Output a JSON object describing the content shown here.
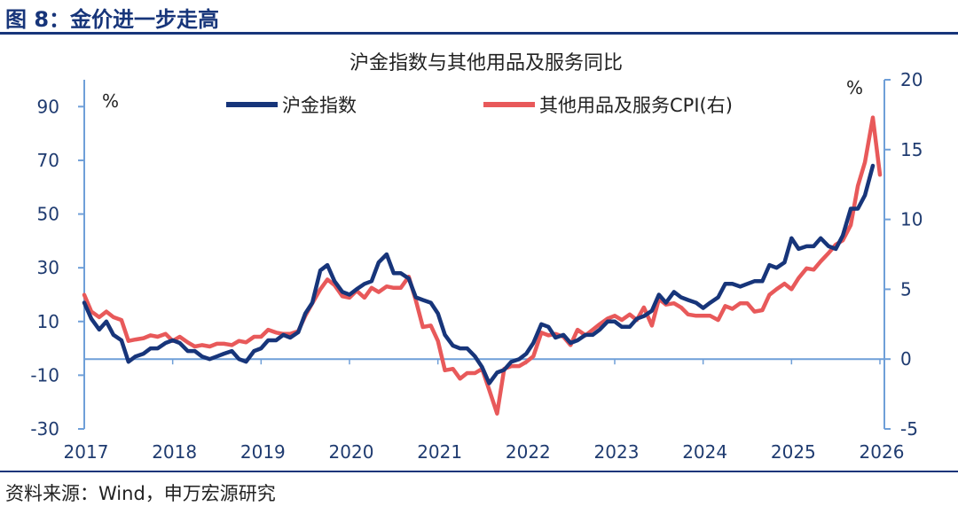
{
  "figure": {
    "title": "图 8：金价进一步走高",
    "source": "资料来源：Wind，申万宏源研究"
  },
  "chart_data": {
    "type": "line",
    "title": "沪金指数与其他用品及服务同比",
    "y_left": {
      "label": "%",
      "lim": [
        -30,
        100
      ],
      "ticks": [
        -30,
        -10,
        10,
        30,
        50,
        70,
        90
      ]
    },
    "y_right": {
      "label": "%",
      "lim": [
        -5,
        20
      ],
      "ticks": [
        -5,
        0,
        5,
        10,
        15,
        20
      ]
    },
    "x_ticks": [
      "2017",
      "2018",
      "2019",
      "2020",
      "2021",
      "2022",
      "2023",
      "2024",
      "2025",
      "2026"
    ],
    "x_range": [
      2017,
      2026
    ],
    "series": [
      {
        "name": "沪金指数",
        "axis": "left",
        "color": "#17357a",
        "points": [
          [
            2017.0,
            17
          ],
          [
            2017.08,
            11
          ],
          [
            2017.17,
            7
          ],
          [
            2017.25,
            10
          ],
          [
            2017.33,
            5
          ],
          [
            2017.42,
            3
          ],
          [
            2017.5,
            -5
          ],
          [
            2017.58,
            -3
          ],
          [
            2017.67,
            -2
          ],
          [
            2017.75,
            0
          ],
          [
            2017.83,
            0
          ],
          [
            2017.92,
            2
          ],
          [
            2018.0,
            3
          ],
          [
            2018.08,
            2
          ],
          [
            2018.17,
            -1
          ],
          [
            2018.25,
            -1
          ],
          [
            2018.33,
            -3
          ],
          [
            2018.42,
            -4
          ],
          [
            2018.5,
            -3
          ],
          [
            2018.58,
            -2
          ],
          [
            2018.67,
            -1
          ],
          [
            2018.75,
            -4
          ],
          [
            2018.83,
            -5
          ],
          [
            2018.92,
            -1
          ],
          [
            2019.0,
            0
          ],
          [
            2019.08,
            3
          ],
          [
            2019.17,
            3
          ],
          [
            2019.25,
            5
          ],
          [
            2019.33,
            4
          ],
          [
            2019.42,
            6
          ],
          [
            2019.5,
            13
          ],
          [
            2019.58,
            17
          ],
          [
            2019.67,
            29
          ],
          [
            2019.75,
            31
          ],
          [
            2019.83,
            25
          ],
          [
            2019.92,
            21
          ],
          [
            2020.0,
            20
          ],
          [
            2020.08,
            22
          ],
          [
            2020.17,
            24
          ],
          [
            2020.25,
            25
          ],
          [
            2020.33,
            32
          ],
          [
            2020.42,
            35
          ],
          [
            2020.5,
            28
          ],
          [
            2020.58,
            28
          ],
          [
            2020.67,
            26
          ],
          [
            2020.75,
            19
          ],
          [
            2020.83,
            18
          ],
          [
            2020.92,
            17
          ],
          [
            2021.0,
            13
          ],
          [
            2021.08,
            5
          ],
          [
            2021.17,
            1
          ],
          [
            2021.25,
            0
          ],
          [
            2021.33,
            0
          ],
          [
            2021.42,
            -3
          ],
          [
            2021.5,
            -7
          ],
          [
            2021.58,
            -13
          ],
          [
            2021.67,
            -9
          ],
          [
            2021.75,
            -8
          ],
          [
            2021.83,
            -5
          ],
          [
            2021.92,
            -4
          ],
          [
            2022.0,
            -2
          ],
          [
            2022.08,
            2
          ],
          [
            2022.17,
            9
          ],
          [
            2022.25,
            8
          ],
          [
            2022.33,
            4
          ],
          [
            2022.42,
            5
          ],
          [
            2022.5,
            2
          ],
          [
            2022.58,
            3
          ],
          [
            2022.67,
            5
          ],
          [
            2022.75,
            5
          ],
          [
            2022.83,
            7
          ],
          [
            2022.92,
            10
          ],
          [
            2023.0,
            10
          ],
          [
            2023.08,
            8
          ],
          [
            2023.17,
            8
          ],
          [
            2023.25,
            11
          ],
          [
            2023.33,
            12
          ],
          [
            2023.42,
            14
          ],
          [
            2023.5,
            20
          ],
          [
            2023.58,
            17
          ],
          [
            2023.67,
            21
          ],
          [
            2023.75,
            19
          ],
          [
            2023.83,
            18
          ],
          [
            2023.92,
            17
          ],
          [
            2024.0,
            15
          ],
          [
            2024.08,
            17
          ],
          [
            2024.17,
            19
          ],
          [
            2024.25,
            24
          ],
          [
            2024.33,
            24
          ],
          [
            2024.42,
            23
          ],
          [
            2024.5,
            24
          ],
          [
            2024.58,
            25
          ],
          [
            2024.67,
            25
          ],
          [
            2024.75,
            31
          ],
          [
            2024.83,
            30
          ],
          [
            2024.92,
            32
          ],
          [
            2025.0,
            41
          ],
          [
            2025.08,
            37
          ],
          [
            2025.17,
            38
          ],
          [
            2025.25,
            38
          ],
          [
            2025.33,
            41
          ],
          [
            2025.42,
            38
          ],
          [
            2025.5,
            37
          ],
          [
            2025.58,
            42
          ],
          [
            2025.67,
            52
          ],
          [
            2025.75,
            52
          ],
          [
            2025.83,
            57
          ],
          [
            2025.92,
            68
          ]
        ]
      },
      {
        "name": "其他用品及服务CPI(右)",
        "axis": "right",
        "color": "#e8595a",
        "points": [
          [
            2017.0,
            4.6
          ],
          [
            2017.08,
            3.4
          ],
          [
            2017.17,
            3.0
          ],
          [
            2017.25,
            3.4
          ],
          [
            2017.33,
            3.0
          ],
          [
            2017.42,
            2.8
          ],
          [
            2017.5,
            1.3
          ],
          [
            2017.58,
            1.4
          ],
          [
            2017.67,
            1.5
          ],
          [
            2017.75,
            1.7
          ],
          [
            2017.83,
            1.6
          ],
          [
            2017.92,
            1.8
          ],
          [
            2018.0,
            1.3
          ],
          [
            2018.08,
            1.6
          ],
          [
            2018.17,
            1.2
          ],
          [
            2018.25,
            0.9
          ],
          [
            2018.33,
            1.0
          ],
          [
            2018.42,
            0.9
          ],
          [
            2018.5,
            1.1
          ],
          [
            2018.58,
            1.1
          ],
          [
            2018.67,
            1.0
          ],
          [
            2018.75,
            1.3
          ],
          [
            2018.83,
            1.2
          ],
          [
            2018.92,
            1.6
          ],
          [
            2019.0,
            1.6
          ],
          [
            2019.08,
            2.1
          ],
          [
            2019.17,
            1.9
          ],
          [
            2019.25,
            1.8
          ],
          [
            2019.33,
            1.8
          ],
          [
            2019.42,
            2.0
          ],
          [
            2019.5,
            3.1
          ],
          [
            2019.58,
            4.0
          ],
          [
            2019.67,
            5.0
          ],
          [
            2019.75,
            5.7
          ],
          [
            2019.83,
            5.3
          ],
          [
            2019.92,
            4.5
          ],
          [
            2020.0,
            4.4
          ],
          [
            2020.08,
            4.9
          ],
          [
            2020.17,
            4.4
          ],
          [
            2020.25,
            5.1
          ],
          [
            2020.33,
            4.8
          ],
          [
            2020.42,
            5.2
          ],
          [
            2020.5,
            5.1
          ],
          [
            2020.58,
            5.1
          ],
          [
            2020.67,
            5.9
          ],
          [
            2020.75,
            4.2
          ],
          [
            2020.83,
            2.3
          ],
          [
            2020.92,
            2.4
          ],
          [
            2021.0,
            1.3
          ],
          [
            2021.08,
            -0.8
          ],
          [
            2021.17,
            -0.7
          ],
          [
            2021.25,
            -1.4
          ],
          [
            2021.33,
            -1.0
          ],
          [
            2021.42,
            -1.0
          ],
          [
            2021.5,
            -0.7
          ],
          [
            2021.58,
            -2.2
          ],
          [
            2021.67,
            -3.9
          ],
          [
            2021.75,
            -0.7
          ],
          [
            2021.83,
            -0.5
          ],
          [
            2021.92,
            -0.5
          ],
          [
            2022.0,
            -0.2
          ],
          [
            2022.08,
            0.2
          ],
          [
            2022.17,
            1.9
          ],
          [
            2022.25,
            1.7
          ],
          [
            2022.33,
            1.8
          ],
          [
            2022.42,
            1.6
          ],
          [
            2022.5,
            1.0
          ],
          [
            2022.58,
            2.1
          ],
          [
            2022.67,
            1.7
          ],
          [
            2022.75,
            2.1
          ],
          [
            2022.83,
            2.5
          ],
          [
            2022.92,
            2.9
          ],
          [
            2023.0,
            3.1
          ],
          [
            2023.08,
            2.8
          ],
          [
            2023.17,
            3.2
          ],
          [
            2023.25,
            2.8
          ],
          [
            2023.33,
            3.7
          ],
          [
            2023.42,
            2.4
          ],
          [
            2023.5,
            4.3
          ],
          [
            2023.58,
            3.9
          ],
          [
            2023.67,
            4.0
          ],
          [
            2023.75,
            3.7
          ],
          [
            2023.83,
            3.2
          ],
          [
            2023.92,
            3.1
          ],
          [
            2024.0,
            3.1
          ],
          [
            2024.08,
            3.1
          ],
          [
            2024.17,
            2.8
          ],
          [
            2024.25,
            3.8
          ],
          [
            2024.33,
            3.6
          ],
          [
            2024.42,
            4.0
          ],
          [
            2024.5,
            4.0
          ],
          [
            2024.58,
            3.4
          ],
          [
            2024.67,
            3.5
          ],
          [
            2024.75,
            4.6
          ],
          [
            2024.83,
            5.0
          ],
          [
            2024.92,
            5.4
          ],
          [
            2025.0,
            5.0
          ],
          [
            2025.08,
            5.8
          ],
          [
            2025.17,
            6.5
          ],
          [
            2025.25,
            6.4
          ],
          [
            2025.33,
            7.0
          ],
          [
            2025.42,
            7.6
          ],
          [
            2025.5,
            8.2
          ],
          [
            2025.58,
            8.5
          ],
          [
            2025.67,
            9.6
          ],
          [
            2025.75,
            12.4
          ],
          [
            2025.83,
            14.1
          ],
          [
            2025.92,
            17.3
          ],
          [
            2026.0,
            13.2
          ]
        ]
      }
    ],
    "legend_position": "top-center",
    "zero_line": true
  }
}
